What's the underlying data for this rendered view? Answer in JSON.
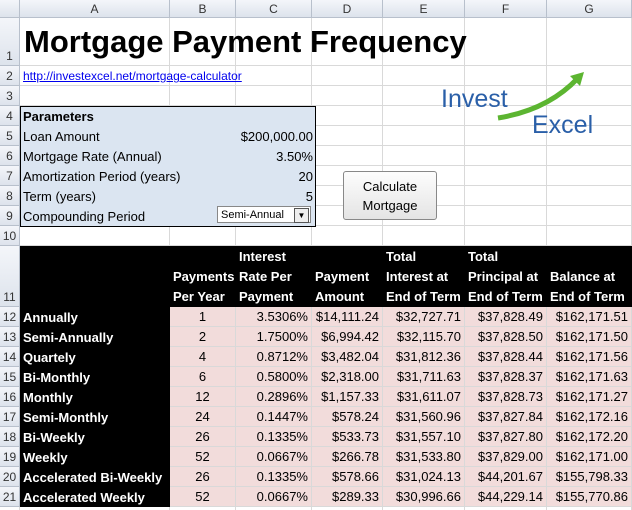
{
  "column_headers": [
    "A",
    "B",
    "C",
    "D",
    "E",
    "F",
    "G"
  ],
  "row_headers": [
    "1",
    "2",
    "3",
    "4",
    "5",
    "6",
    "7",
    "8",
    "9",
    "10",
    "11",
    "12",
    "13",
    "14",
    "15",
    "16",
    "17",
    "18",
    "19",
    "20",
    "21"
  ],
  "title": "Mortgage Payment Frequency",
  "link": "http://investexcel.net/mortgage-calculator",
  "logo": {
    "line1": "Invest",
    "line2": "Excel"
  },
  "parameters": {
    "heading": "Parameters",
    "rows": [
      [
        "Loan Amount",
        "$200,000.00"
      ],
      [
        "Mortgage Rate (Annual)",
        "3.50%"
      ],
      [
        "Amortization Period (years)",
        "20"
      ],
      [
        "Term (years)",
        "5"
      ]
    ],
    "compounding": {
      "label": "Compounding Period",
      "value": "Semi-Annual"
    }
  },
  "button": "Calculate Mortgage",
  "table": {
    "headers": [
      "Payments Per Year",
      "Interest Rate Per Payment",
      "Payment Amount",
      "Total Interest at End of Term",
      "Total Principal at End of Term",
      "Balance at End of Term"
    ],
    "rows": [
      [
        "Annually",
        "1",
        "3.5306%",
        "$14,111.24",
        "$32,727.71",
        "$37,828.49",
        "$162,171.51"
      ],
      [
        "Semi-Annually",
        "2",
        "1.7500%",
        "$6,994.42",
        "$32,115.70",
        "$37,828.50",
        "$162,171.50"
      ],
      [
        "Quartely",
        "4",
        "0.8712%",
        "$3,482.04",
        "$31,812.36",
        "$37,828.44",
        "$162,171.56"
      ],
      [
        "Bi-Monthly",
        "6",
        "0.5800%",
        "$2,318.00",
        "$31,711.63",
        "$37,828.37",
        "$162,171.63"
      ],
      [
        "Monthly",
        "12",
        "0.2896%",
        "$1,157.33",
        "$31,611.07",
        "$37,828.73",
        "$162,171.27"
      ],
      [
        "Semi-Monthly",
        "24",
        "0.1447%",
        "$578.24",
        "$31,560.96",
        "$37,827.84",
        "$162,172.16"
      ],
      [
        "Bi-Weekly",
        "26",
        "0.1335%",
        "$533.73",
        "$31,557.10",
        "$37,827.80",
        "$162,172.20"
      ],
      [
        "Weekly",
        "52",
        "0.0667%",
        "$266.78",
        "$31,533.80",
        "$37,829.00",
        "$162,171.00"
      ],
      [
        "Accelerated Bi-Weekly",
        "26",
        "0.1335%",
        "$578.66",
        "$31,024.13",
        "$44,201.67",
        "$155,798.33"
      ],
      [
        "Accelerated Weekly",
        "52",
        "0.0667%",
        "$289.33",
        "$30,996.66",
        "$44,229.14",
        "$155,770.86"
      ]
    ]
  }
}
